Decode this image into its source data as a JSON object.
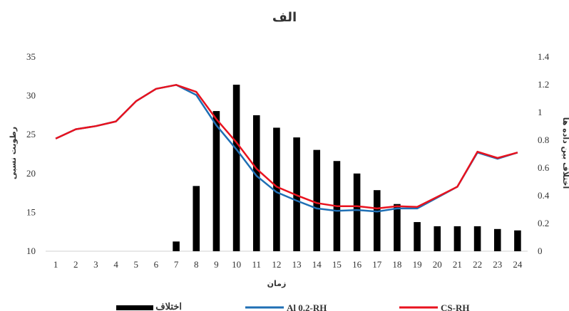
{
  "chart_data": {
    "type": "bar+line",
    "title": "الف",
    "xlabel": "زمان",
    "ylabel_left": "رطوبت نسبی",
    "ylabel_right": "اختلاف بین داده ها",
    "x": [
      1,
      2,
      3,
      4,
      5,
      6,
      7,
      8,
      9,
      10,
      11,
      12,
      13,
      14,
      15,
      16,
      17,
      18,
      19,
      20,
      21,
      22,
      23,
      24
    ],
    "x_tick_labels": [
      "1",
      "2",
      "3",
      "4",
      "5",
      "6",
      "7",
      "8",
      "9",
      "10",
      "11",
      "12",
      "13",
      "14",
      "15",
      "16",
      "17",
      "18",
      "19",
      "20",
      "21",
      "22",
      "23",
      "24"
    ],
    "ylim_left": [
      10,
      35
    ],
    "y_ticks_left": [
      "10",
      "15",
      "20",
      "25",
      "30",
      "35"
    ],
    "ylim_right": [
      0,
      1.4
    ],
    "y_ticks_right": [
      "0",
      "0.2",
      "0.4",
      "0.6",
      "0.8",
      "1",
      "1.2",
      "1.4"
    ],
    "grid": false,
    "legend_position": "bottom",
    "bars": {
      "name": "اختلاف",
      "axis": "right",
      "color": "#000000",
      "values": [
        0,
        0,
        0,
        0,
        0,
        0,
        0.07,
        0.47,
        1.01,
        1.2,
        0.98,
        0.89,
        0.82,
        0.73,
        0.65,
        0.56,
        0.44,
        0.34,
        0.21,
        0.18,
        0.18,
        0.18,
        0.16,
        0.15
      ]
    },
    "series": [
      {
        "name": "Al 0.2-RH",
        "axis": "left",
        "color": "#1f6fb4",
        "values": [
          24.5,
          25.7,
          26.1,
          26.7,
          29.3,
          30.9,
          31.4,
          30.1,
          26.2,
          23.1,
          19.7,
          17.6,
          16.5,
          15.5,
          15.2,
          15.3,
          15.1,
          15.5,
          15.5,
          16.9,
          18.3,
          22.7,
          21.9,
          22.7
        ]
      },
      {
        "name": "CS-RH",
        "axis": "left",
        "color": "#e8121e",
        "values": [
          24.5,
          25.7,
          26.1,
          26.7,
          29.3,
          30.9,
          31.4,
          30.5,
          27.0,
          24.0,
          20.6,
          18.3,
          17.2,
          16.2,
          15.8,
          15.8,
          15.5,
          15.8,
          15.7,
          17.0,
          18.3,
          22.8,
          22.0,
          22.7
        ]
      }
    ]
  }
}
